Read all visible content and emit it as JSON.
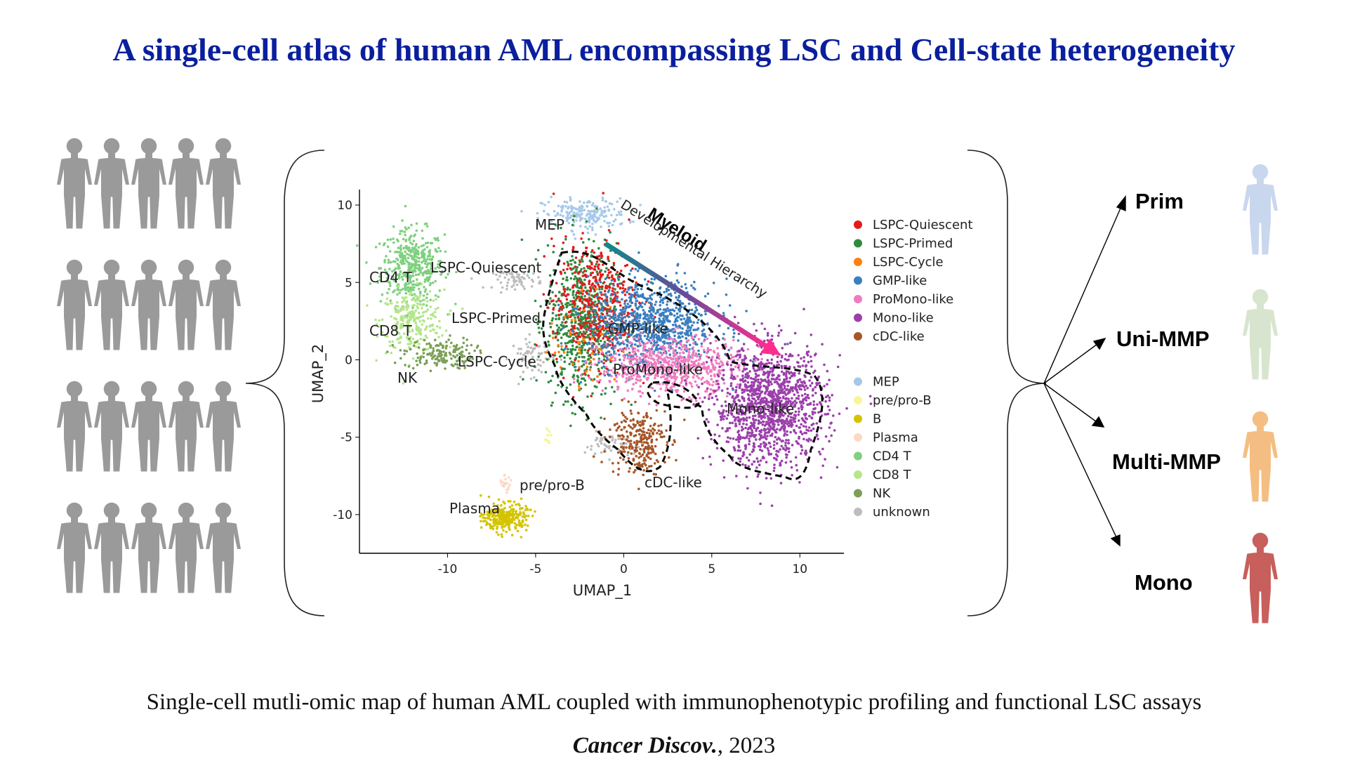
{
  "title": "A single-cell atlas of human AML encompassing LSC and Cell-state heterogeneity",
  "caption": "Single-cell mutli-omic map of human AML coupled with immunophenotypic profiling and functional LSC assays",
  "citation": {
    "journal": "Cancer Discov.",
    "year": ", 2023"
  },
  "colors": {
    "title": "#0a1f9e",
    "patient_silhouette": "#9a9a9a"
  },
  "arrow_annotation": {
    "line1": "Myeloid",
    "line2": "Developmental Hierarchy"
  },
  "cluster_labels": {
    "mep": "MEP",
    "lspc_quiescent": "LSPC-Quiescent",
    "lspc_primed": "LSPC-Primed",
    "lspc_cycle": "LSPC-Cycle",
    "gmp_like": "GMP-like",
    "promono_like": "ProMono-like",
    "mono_like": "Mono-like",
    "cdc_like": "cDC-like",
    "cd4t": "CD4 T",
    "cd8t": "CD8 T",
    "nk": "NK",
    "pre_pro_b": "pre/pro-B",
    "plasma": "Plasma"
  },
  "chart_data": {
    "type": "scatter",
    "title": "",
    "xlabel": "UMAP_1",
    "ylabel": "UMAP_2",
    "xlim": [
      -15,
      12.5
    ],
    "ylim": [
      -12.5,
      11
    ],
    "xticks": [
      -10,
      -5,
      0,
      5,
      10
    ],
    "yticks": [
      -10,
      -5,
      0,
      5,
      10
    ],
    "legend": [
      {
        "name": "LSPC-Quiescent",
        "color": "#e41a1c"
      },
      {
        "name": "LSPC-Primed",
        "color": "#2e8b3e"
      },
      {
        "name": "LSPC-Cycle",
        "color": "#ff7f0e"
      },
      {
        "name": "GMP-like",
        "color": "#3a7fbf"
      },
      {
        "name": "ProMono-like",
        "color": "#f07cc0"
      },
      {
        "name": "Mono-like",
        "color": "#9b3fab"
      },
      {
        "name": "cDC-like",
        "color": "#a65628"
      },
      {
        "name": "MEP",
        "color": "#a6c8e8"
      },
      {
        "name": "pre/pro-B",
        "color": "#f7f59a"
      },
      {
        "name": "B",
        "color": "#d4c400"
      },
      {
        "name": "Plasma",
        "color": "#fbd9c4"
      },
      {
        "name": "CD4 T",
        "color": "#7fd07f"
      },
      {
        "name": "CD8 T",
        "color": "#b5e68b"
      },
      {
        "name": "NK",
        "color": "#7a9f55"
      },
      {
        "name": "unknown",
        "color": "#bdbdbd"
      }
    ],
    "clusters": [
      {
        "label": "CD4 T",
        "color": "#7fd07f",
        "center": [
          -12,
          6
        ],
        "spread": [
          0.9,
          1.2
        ],
        "n": 420
      },
      {
        "label": "CD8 T",
        "color": "#b5e68b",
        "center": [
          -12,
          2.5
        ],
        "spread": [
          0.9,
          1.0
        ],
        "n": 260
      },
      {
        "label": "NK",
        "color": "#7a9f55",
        "center": [
          -10.5,
          0.4
        ],
        "spread": [
          1.0,
          0.5
        ],
        "n": 160
      },
      {
        "label": "MEP",
        "color": "#a6c8e8",
        "center": [
          -2.2,
          9.4
        ],
        "spread": [
          1.2,
          0.5
        ],
        "n": 200
      },
      {
        "label": "unknown",
        "color": "#bdbdbd",
        "center": [
          -6,
          5.2
        ],
        "spread": [
          0.7,
          0.3
        ],
        "n": 70
      },
      {
        "label": "unknown",
        "color": "#bdbdbd",
        "center": [
          -5.2,
          0.2
        ],
        "spread": [
          0.6,
          0.6
        ],
        "n": 70
      },
      {
        "label": "unknown",
        "color": "#bdbdbd",
        "center": [
          -0.8,
          -5.5
        ],
        "spread": [
          0.7,
          0.4
        ],
        "n": 60
      },
      {
        "label": "LSPC-Primed",
        "color": "#2e8b3e",
        "center": [
          -2.4,
          2.5
        ],
        "spread": [
          1.0,
          2.5
        ],
        "n": 650
      },
      {
        "label": "LSPC-Quiescent",
        "color": "#e41a1c",
        "center": [
          -1.6,
          3.6
        ],
        "spread": [
          1.2,
          2.0
        ],
        "n": 480
      },
      {
        "label": "LSPC-Cycle",
        "color": "#ff7f0e",
        "center": [
          -2.2,
          1.2
        ],
        "spread": [
          1.0,
          1.5
        ],
        "n": 60
      },
      {
        "label": "GMP-like",
        "color": "#3a7fbf",
        "center": [
          1.6,
          2.3
        ],
        "spread": [
          1.8,
          1.4
        ],
        "n": 900
      },
      {
        "label": "ProMono-like",
        "color": "#f07cc0",
        "center": [
          2.7,
          -0.4
        ],
        "spread": [
          2.0,
          0.9
        ],
        "n": 650
      },
      {
        "label": "Mono-like",
        "color": "#9b3fab",
        "center": [
          8.3,
          -3.0
        ],
        "spread": [
          1.6,
          1.9
        ],
        "n": 1300
      },
      {
        "label": "cDC-like",
        "color": "#a65628",
        "center": [
          0.8,
          -5.2
        ],
        "spread": [
          0.8,
          1.1
        ],
        "n": 260
      },
      {
        "label": "B",
        "color": "#d4c400",
        "center": [
          -6.7,
          -10.2
        ],
        "spread": [
          0.6,
          0.45
        ],
        "n": 280
      },
      {
        "label": "Plasma",
        "color": "#fbd9c4",
        "center": [
          -6.8,
          -8.0
        ],
        "spread": [
          0.2,
          0.25
        ],
        "n": 20
      },
      {
        "label": "pre/pro-B",
        "color": "#f7f59a",
        "center": [
          -4.3,
          -5.0
        ],
        "spread": [
          0.1,
          0.4
        ],
        "n": 12
      }
    ]
  },
  "outcome_groups": [
    {
      "label": "Prim",
      "color": "#c9d7ee"
    },
    {
      "label": "Uni-MMP",
      "color": "#d7e5cf"
    },
    {
      "label": "Multi-MMP",
      "color": "#f4be82"
    },
    {
      "label": "Mono",
      "color": "#c75f5d"
    }
  ]
}
